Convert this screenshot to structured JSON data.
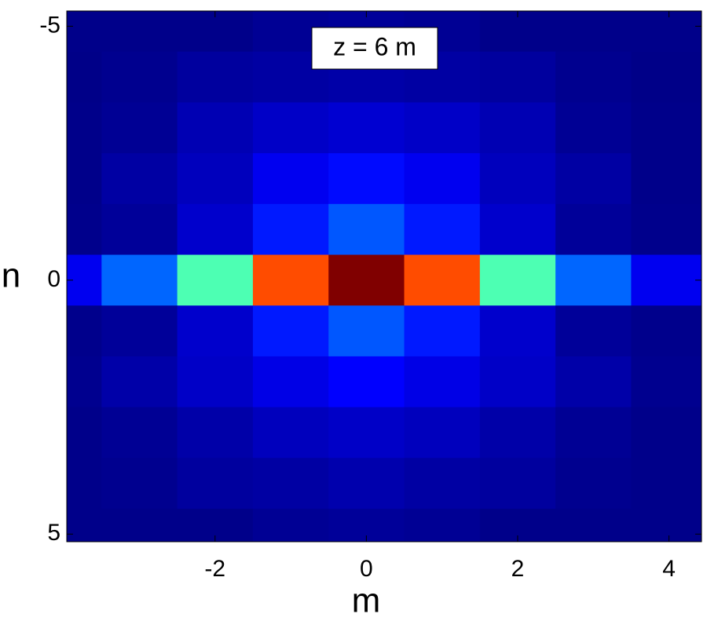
{
  "chart_data": {
    "type": "heatmap",
    "annotation": "z = 6 m",
    "x_label": "m",
    "y_label": "n",
    "colormap": "jet",
    "clim": [
      0,
      1
    ],
    "x": [
      -4,
      -3,
      -2,
      -1,
      0,
      1,
      2,
      3,
      4
    ],
    "y": [
      -5,
      -4,
      -3,
      -2,
      -1,
      0,
      1,
      2,
      3,
      4,
      5
    ],
    "z": [
      [
        0.01,
        0.01,
        0.01,
        0.02,
        0.025,
        0.02,
        0.01,
        0.01,
        0.01
      ],
      [
        0.008,
        0.015,
        0.03,
        0.035,
        0.04,
        0.035,
        0.03,
        0.015,
        0.008
      ],
      [
        0.01,
        0.02,
        0.05,
        0.07,
        0.08,
        0.07,
        0.05,
        0.02,
        0.01
      ],
      [
        0.01,
        0.035,
        0.06,
        0.11,
        0.135,
        0.11,
        0.06,
        0.035,
        0.01
      ],
      [
        0.012,
        0.025,
        0.075,
        0.15,
        0.21,
        0.15,
        0.075,
        0.025,
        0.012
      ],
      [
        0.11,
        0.225,
        0.45,
        0.8,
        1,
        0.8,
        0.45,
        0.225,
        0.11
      ],
      [
        0.012,
        0.025,
        0.075,
        0.15,
        0.21,
        0.15,
        0.075,
        0.025,
        0.012
      ],
      [
        0.015,
        0.04,
        0.07,
        0.1,
        0.125,
        0.1,
        0.07,
        0.04,
        0.015
      ],
      [
        0.01,
        0.02,
        0.04,
        0.06,
        0.07,
        0.06,
        0.04,
        0.02,
        0.01
      ],
      [
        0.01,
        0.015,
        0.03,
        0.035,
        0.045,
        0.035,
        0.03,
        0.015,
        0.01
      ],
      [
        0.01,
        0.01,
        0.01,
        0.02,
        0.025,
        0.02,
        0.01,
        0.01,
        0.01
      ]
    ],
    "xlim": [
      -3.96,
      4.43
    ],
    "ylim": [
      -5.3,
      5.15
    ],
    "xticks": [
      -2,
      0,
      2,
      4
    ],
    "yticks": [
      -5,
      0,
      5
    ],
    "y_reversed": true
  }
}
